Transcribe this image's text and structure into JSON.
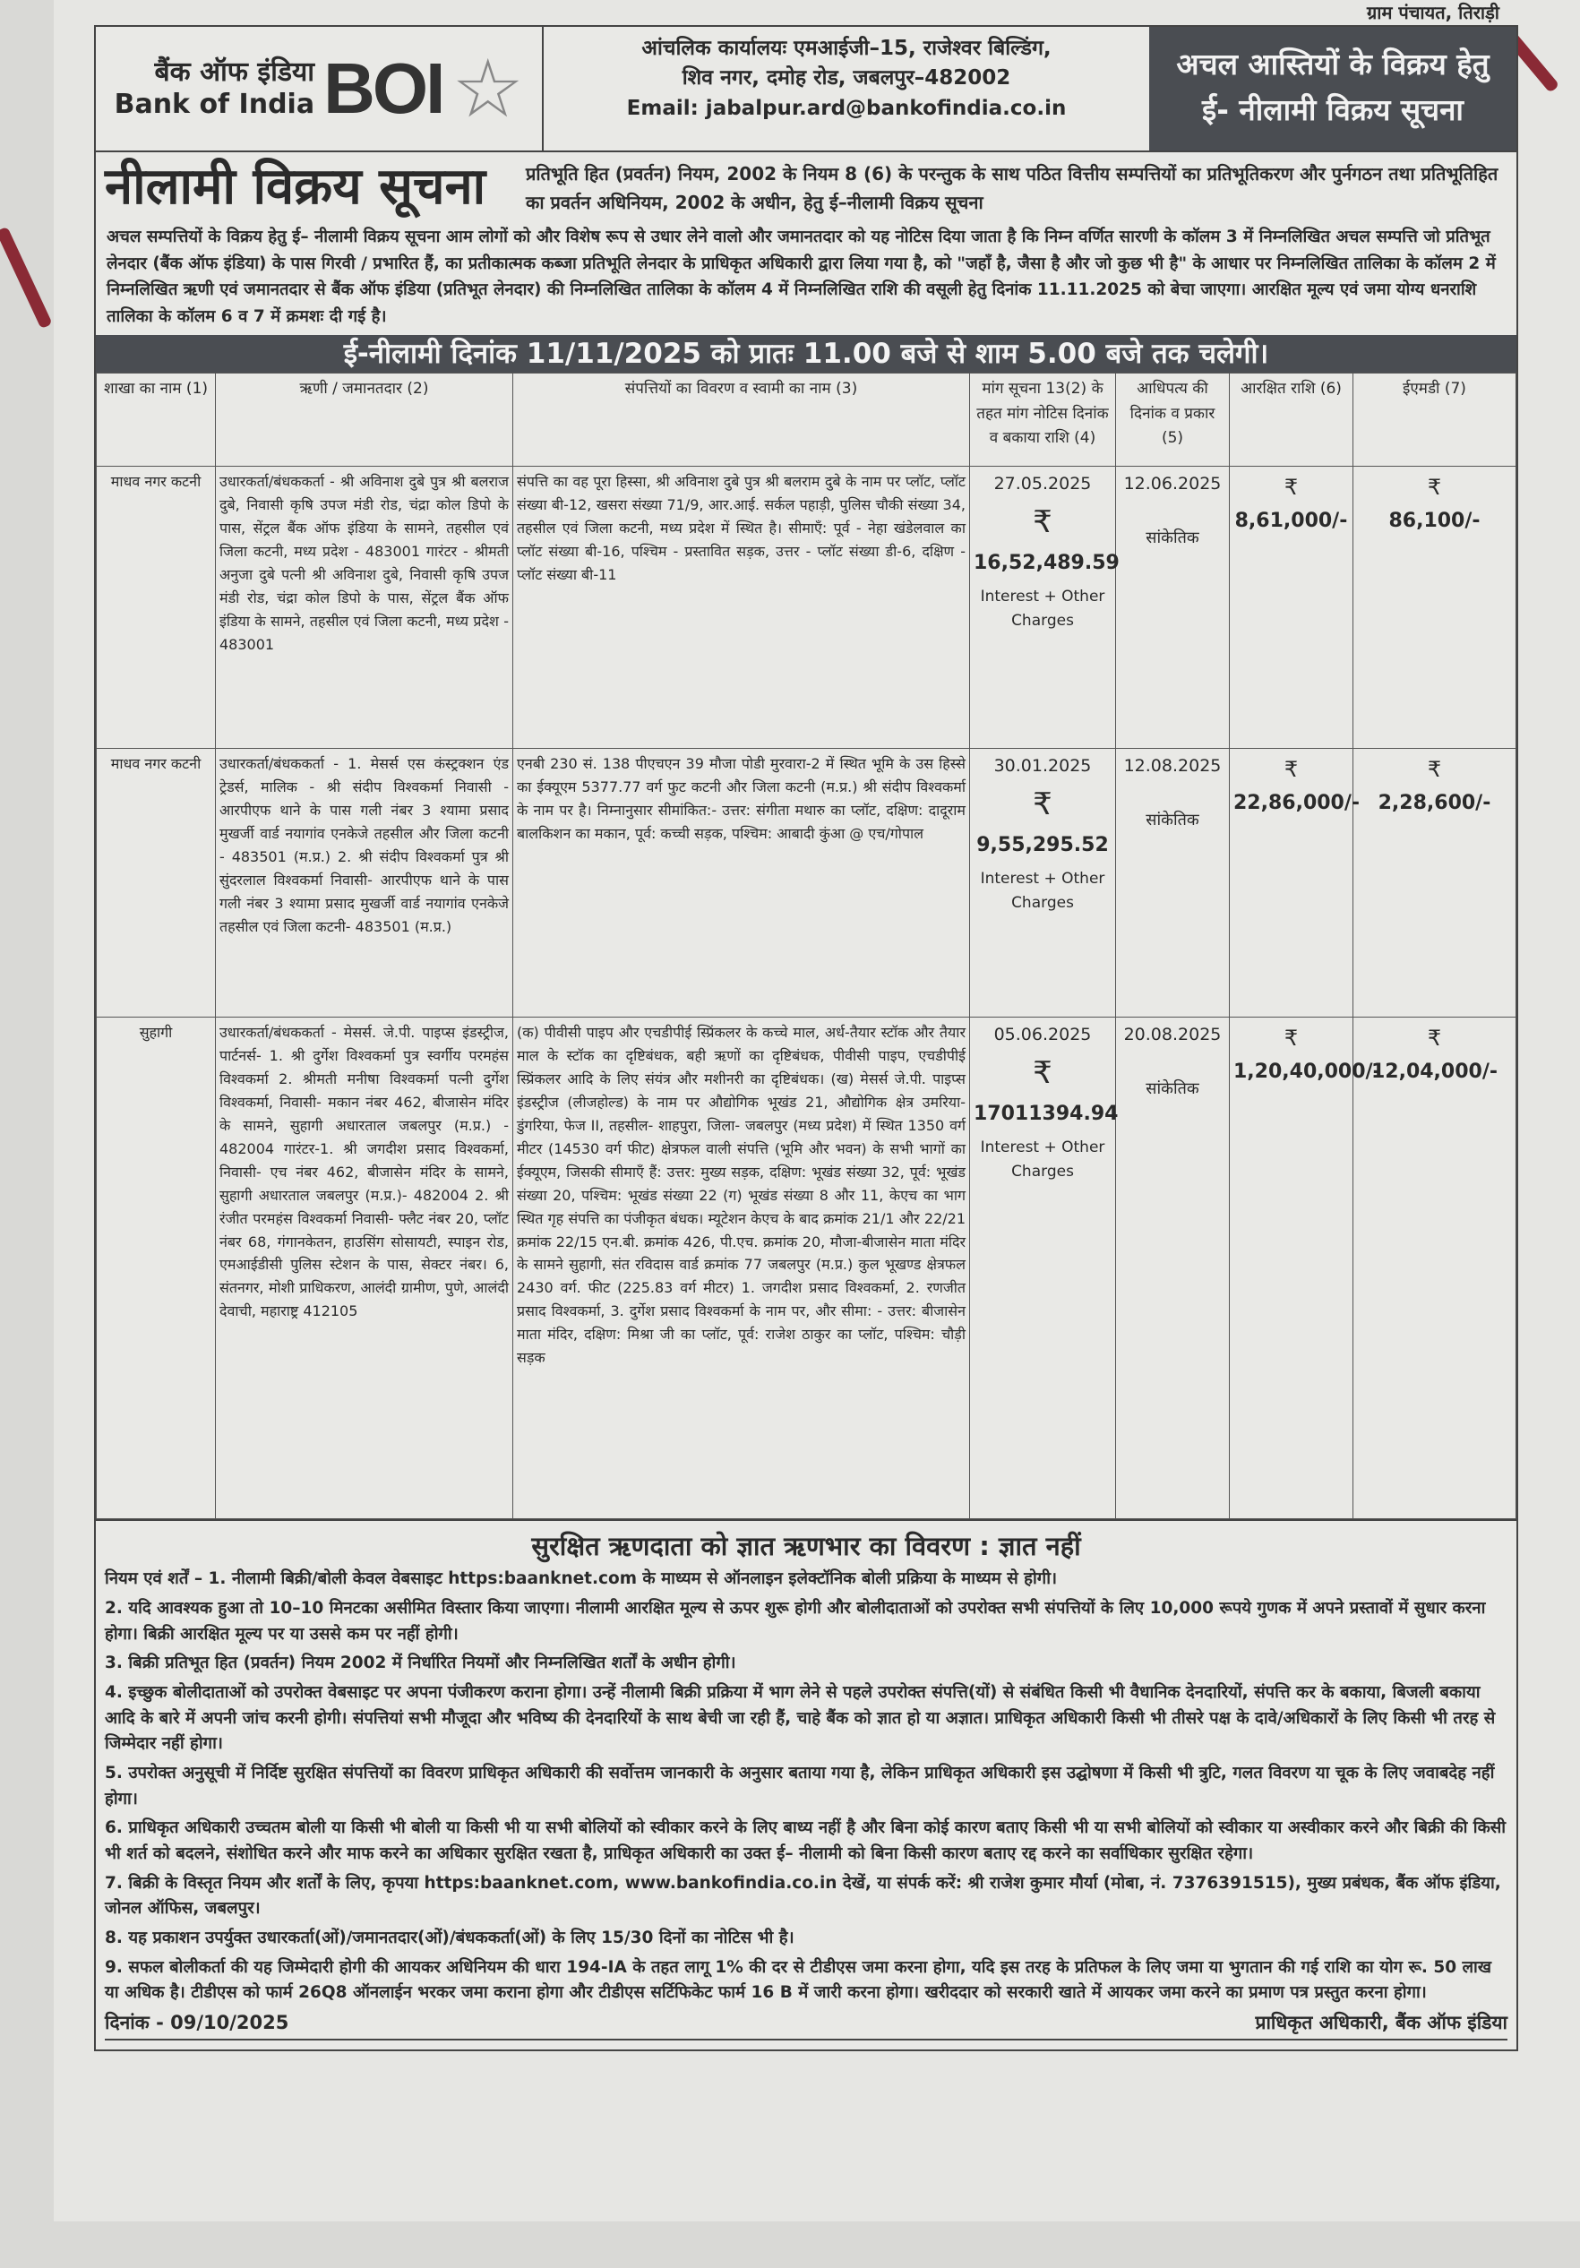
{
  "top_strip": "ग्राम पंचायत, तिराड़ी",
  "header": {
    "logo_hindi": "बैंक ऑफ इंडिया",
    "logo_english": "Bank of India",
    "logo_mark": "BOI",
    "address_line1": "आंचलिक कार्यालयः एमआईजी–15, राजेश्वर बिल्डिंग,",
    "address_line2": "शिव नगर, दमोह रोड, जबलपुर–482002",
    "email": "Email: jabalpur.ard@bankofindia.co.in",
    "box_title_line1": "अचल आस्तियों के विक्रय हेतु",
    "box_title_line2": "ई- नीलामी विक्रय सूचना"
  },
  "title": "नीलामी विक्रय सूचना",
  "subtitle": "प्रतिभूति हित (प्रवर्तन) नियम, 2002 के नियम 8 (6) के परन्तुक के साथ पठित वित्तीय सम्पत्तियों का प्रतिभूतिकरण और पुर्नगठन तथा प्रतिभूतिहित का प्रवर्तन अधिनियम, 2002 के अधीन, हेतु ई–नीलामी विक्रय सूचना",
  "intro": "अचल सम्पत्तियों के विक्रय हेतु ई– नीलामी विक्रय सूचना आम लोगों को और विशेष रूप से उधार लेने वालो और जमानतदार को यह नोटिस दिया जाता है कि निम्न वर्णित सारणी के कॉलम 3 में निम्नलिखित अचल सम्पत्ति जो प्रतिभूत लेनदार (बैंक ऑफ इंडिया) के पास गिरवी / प्रभारित हैं, का प्रतीकात्मक कब्जा प्रतिभूति लेनदार के प्राधिकृत अधिकारी द्वारा लिया गया है, को \"जहाँ है, जैसा है और जो कुछ भी है\" के आधार पर निम्नलिखित तालिका के कॉलम 2 में निम्नलिखित ऋणी एवं जमानतदार से बैंक ऑफ इंडिया (प्रतिभूत लेनदार) की निम्नलिखित तालिका के कॉलम 4 में निम्नलिखित राशि की वसूली हेतु दिनांक 11.11.2025 को बेचा जाएगा। आरक्षित मूल्य एवं जमा योग्य धनराशि तालिका के कॉलम 6 व 7 में क्रमशः दी गई है।",
  "banner": "ई-नीलामी दिनांक  11/11/2025  को प्रातः 11.00 बजे से शाम 5.00 बजे तक चलेगी।",
  "table": {
    "headers": [
      "शाखा का नाम (1)",
      "ऋणी / जमानतदार (2)",
      "संपत्तियों का विवरण व स्वामी का नाम (3)",
      "मांग सूचना 13(2) के तहत मांग नोटिस दिनांक व बकाया राशि (4)",
      "आधिपत्य की दिनांक व प्रकार (5)",
      "आरक्षित राशि (6)",
      "ईएमडी (7)"
    ],
    "currency": "₹",
    "interest_note": "Interest + Other Charges",
    "rows": [
      {
        "branch": "माधव नगर कटनी",
        "borrower": "उधारकर्ता/बंधककर्ता - श्री अविनाश दुबे पुत्र श्री बलराज दुबे, निवासी कृषि उपज मंडी रोड, चंद्रा कोल डिपो के पास, सेंट्रल बैंक ऑफ इंडिया के सामने, तहसील एवं जिला कटनी, मध्य प्रदेश - 483001 गारंटर - श्रीमती अनुजा दुबे पत्नी श्री अविनाश दुबे, निवासी कृषि उपज मंडी रोड, चंद्रा कोल डिपो के पास, सेंट्रल बैंक ऑफ इंडिया के सामने, तहसील एवं जिला कटनी, मध्य प्रदेश - 483001",
        "property": "संपत्ति का वह पूरा हिस्सा, श्री अविनाश दुबे पुत्र श्री बलराम दुबे के नाम पर प्लॉट, प्लॉट संख्या बी-12, खसरा संख्या 71/9, आर.आई. सर्कल पहाड़ी, पुलिस चौकी संख्या 34, तहसील एवं जिला कटनी, मध्य प्रदेश में स्थित है। सीमाएँ: पूर्व - नेहा खंडेलवाल का प्लॉट संख्या बी-16, पश्चिम - प्रस्तावित सड़क, उत्तर - प्लॉट संख्या डी-6, दक्षिण - प्लॉट संख्या बी-11",
        "demand_date": "27.05.2025",
        "demand_amount": "16,52,489.59",
        "possession_date": "12.06.2025",
        "possession_type": "सांकेतिक",
        "reserve": "8,61,000/-",
        "emd": "86,100/-"
      },
      {
        "branch": "माधव नगर कटनी",
        "borrower": "उधारकर्ता/बंधककर्ता - 1. मेसर्स एस कंस्ट्रक्शन एंड ट्रेडर्स, मालिक - श्री संदीप विश्वकर्मा निवासी - आरपीएफ थाने के पास गली नंबर 3 श्यामा प्रसाद मुखर्जी वार्ड नयागांव एनकेजे तहसील और जिला कटनी - 483501 (म.प्र.) 2. श्री संदीप विश्वकर्मा पुत्र श्री सुंदरलाल विश्वकर्मा निवासी- आरपीएफ थाने के पास गली नंबर 3 श्यामा प्रसाद मुखर्जी वार्ड नयागांव एनकेजे तहसील एवं जिला कटनी- 483501 (म.प्र.)",
        "property": "एनबी 230 सं. 138 पीएचएन 39 मौजा पोडी मुरवारा-2 में स्थित भूमि के उस हिस्से का ईक्यूएम 5377.77 वर्ग फुट कटनी और जिला कटनी (म.प्र.) श्री संदीप विश्वकर्मा के नाम पर है। निम्नानुसार सीमांकित:- उत्तर: संगीता मथारु का प्लॉट, दक्षिण: दादूराम बालकिशन का मकान, पूर्व: कच्ची सड़क, पश्चिम: आबादी कुंआ @ एच/गोपाल",
        "demand_date": "30.01.2025",
        "demand_amount": "9,55,295.52",
        "possession_date": "12.08.2025",
        "possession_type": "सांकेतिक",
        "reserve": "22,86,000/-",
        "emd": "2,28,600/-"
      },
      {
        "branch": "सुहागी",
        "borrower": "उधारकर्ता/बंधककर्ता - मेसर्स. जे.पी. पाइप्स इंडस्ट्रीज, पार्टनर्स- 1. श्री दुर्गेश विश्वकर्मा पुत्र स्वर्गीय परमहंस विश्वकर्मा 2. श्रीमती मनीषा विश्वकर्मा पत्नी दुर्गेश विश्वकर्मा, निवासी- मकान नंबर 462, बीजासेन मंदिर के सामने, सुहागी अधारताल जबलपुर (म.प्र.) - 482004 गारंटर-1. श्री जगदीश प्रसाद विश्वकर्मा, निवासी- एच नंबर 462, बीजासेन मंदिर के सामने, सुहागी अधारताल जबलपुर (म.प्र.)- 482004 2. श्री रंजीत परमहंस विश्वकर्मा निवासी- फ्लैट नंबर 20, प्लॉट नंबर 68, गंगानकेतन, हाउसिंग सोसायटी, स्पाइन रोड, एमआईडीसी पुलिस स्टेशन के पास, सेक्टर नंबर। 6, संतनगर, मोशी प्राधिकरण, आलंदी ग्रामीण, पुणे, आलंदी देवाची, महाराष्ट्र 412105",
        "property": "(क) पीवीसी पाइप और एचडीपीई स्प्रिंकलर के कच्चे माल, अर्ध-तैयार स्टॉक और तैयार माल के स्टॉक का दृष्टिबंधक, बही ऋणों का दृष्टिबंधक, पीवीसी पाइप, एचडीपीई स्प्रिंकलर आदि के लिए संयंत्र और मशीनरी का दृष्टिबंधक। (ख) मेसर्स जे.पी. पाइप्स इंडस्ट्रीज (लीजहोल्ड) के नाम पर औद्योगिक भूखंड 21, औद्योगिक क्षेत्र उमरिया-डुंगरिया, फेज II, तहसील- शाहपुरा, जिला- जबलपुर (मध्य प्रदेश) में स्थित 1350 वर्ग मीटर (14530 वर्ग फीट) क्षेत्रफल वाली संपत्ति (भूमि और भवन) के सभी भागों का ईक्यूएम, जिसकी सीमाएँ हैं: उत्तर: मुख्य सड़क, दक्षिण: भूखंड संख्या 32, पूर्व: भूखंड संख्या 20, पश्चिम: भूखंड संख्या 22 (ग) भूखंड संख्या 8 और 11, केएच का भाग स्थित गृह संपत्ति का पंजीकृत बंधक। म्यूटेशन केएच के बाद क्रमांक 21/1 और 22/21 क्रमांक 22/15 एन.बी. क्रमांक 426, पी.एच. क्रमांक 20, मौजा-बीजासेन माता मंदिर के सामने सुहागी, संत रविदास वार्ड क्रमांक 77 जबलपुर (म.प्र.) कुल भूखण्ड क्षेत्रफल 2430 वर्ग. फीट (225.83 वर्ग मीटर) 1. जगदीश प्रसाद विश्वकर्मा, 2. रणजीत प्रसाद विश्वकर्मा, 3. दुर्गेश प्रसाद विश्वकर्मा के नाम पर, और सीमा: - उत्तर: बीजासेन माता मंदिर, दक्षिण: मिश्रा जी का प्लॉट, पूर्व: राजेश ठाकुर का प्लॉट, पश्चिम: चौड़ी सड़क",
        "demand_date": "05.06.2025",
        "demand_amount": "17011394.94",
        "possession_date": "20.08.2025",
        "possession_type": "सांकेतिक",
        "reserve": "1,20,40,000/-",
        "emd": "12,04,000/-"
      }
    ]
  },
  "terms": {
    "heading": "सुरक्षित ऋणदाता को ज्ञात ऋणभार का विवरण : ज्ञात नहीं",
    "items": [
      "नियम एवं शर्तें – 1. नीलामी बिक्री/बोली केवल वेबसाइट https:baanknet.com के माध्यम से ऑनलाइन इलेक्टॉनिक बोली प्रक्रिया के माध्यम से होगी।",
      "2. यदि आवश्यक हुआ तो 10–10 मिनटका असीमित विस्तार किया जाएगा। नीलामी आरक्षित मूल्य से ऊपर शुरू होगी और बोलीदाताओं को उपरोक्त सभी संपत्तियों के लिए 10,000 रूपये गुणक में अपने प्रस्तावों में सुधार करना होगा। बिक्री आरक्षित मूल्य पर या उससे कम पर नहीं होगी।",
      "3. बिक्री प्रतिभूत हित (प्रवर्तन) नियम 2002 में निर्धारित नियमों और निम्नलिखित शर्तों के अधीन होगी।",
      "4. इच्छुक बोलीदाताओं को उपरोक्त वेबसाइट पर अपना पंजीकरण कराना होगा। उन्हें नीलामी बिक्री प्रक्रिया में भाग लेने से पहले उपरोक्त संपत्ति(यों) से संबंधित किसी भी वैधानिक देनदारियों, संपत्ति कर के बकाया, बिजली बकाया आदि के बारे में अपनी जांच करनी होगी। संपत्तियां सभी मौजूदा और भविष्य की देनदारियों के साथ बेची जा रही हैं, चाहे बैंक को ज्ञात हो या अज्ञात। प्राधिकृत अधिकारी किसी भी तीसरे पक्ष के दावे/अधिकारों के लिए किसी भी तरह से जिम्मेदार नहीं होगा।",
      "5. उपरोक्त अनुसूची में निर्दिष्ट सुरक्षित संपत्तियों का विवरण प्राधिकृत अधिकारी की सर्वोत्तम जानकारी के अनुसार बताया गया है, लेकिन प्राधिकृत अधिकारी इस उद्घोषणा में किसी भी त्रुटि, गलत विवरण या चूक के लिए जवाबदेह नहीं होगा।",
      "6. प्राधिकृत अधिकारी उच्चतम बोली या किसी भी बोली या किसी भी या सभी बोलियों को स्वीकार करने के लिए बाध्य नहीं है और बिना कोई कारण बताए किसी भी या सभी बोलियों को स्वीकार या अस्वीकार करने और बिक्री की किसी भी शर्त को बदलने, संशोधित करने और माफ करने का अधिकार सुरक्षित रखता है, प्राधिकृत अधिकारी का उक्त ई– नीलामी को बिना किसी कारण बताए रद्द करने का सर्वाधिकार सुरक्षित रहेगा।",
      "7. बिक्री के विस्तृत नियम और शर्तों के लिए, कृपया https:baanknet.com, www.bankofindia.co.in देखें, या संपर्क करें: श्री राजेश कुमार मौर्या (मोबा, नं. 7376391515), मुख्य प्रबंधक, बैंक ऑफ इंडिया, जोनल ऑफिस, जबलपुर।",
      "8. यह प्रकाशन उपर्युक्त उधारकर्ता(ओं)/जमानतदार(ओं)/बंधककर्ता(ओं) के लिए 15/30 दिनों का नोटिस भी है।",
      "9. सफल बोलीकर्ता की यह जिम्मेदारी होगी की आयकर अधिनियम की धारा 194-IA के तहत लागू 1% की दर से टीडीएस जमा करना होगा, यदि इस तरह के प्रतिफल के लिए जमा या भुगतान की गई राशि का योग रू. 50 लाख या अधिक है। टीडीएस को फार्म 26Q8 ऑनलाईन भरकर जमा कराना होगा और टीडीएस सर्टिफिकेट फार्म 16 B में जारी करना होगा। खरीददार को सरकारी खाते में आयकर जमा करने का प्रमाण पत्र प्रस्तुत करना होगा।"
    ],
    "date": "दिनांक - 09/10/2025",
    "signatory": "प्राधिकृत अधिकारी, बैंक ऑफ इंडिया"
  },
  "colors": {
    "banner": "#4a4d52",
    "paper": "#e6e6e3",
    "mark": "#8a2a35"
  }
}
